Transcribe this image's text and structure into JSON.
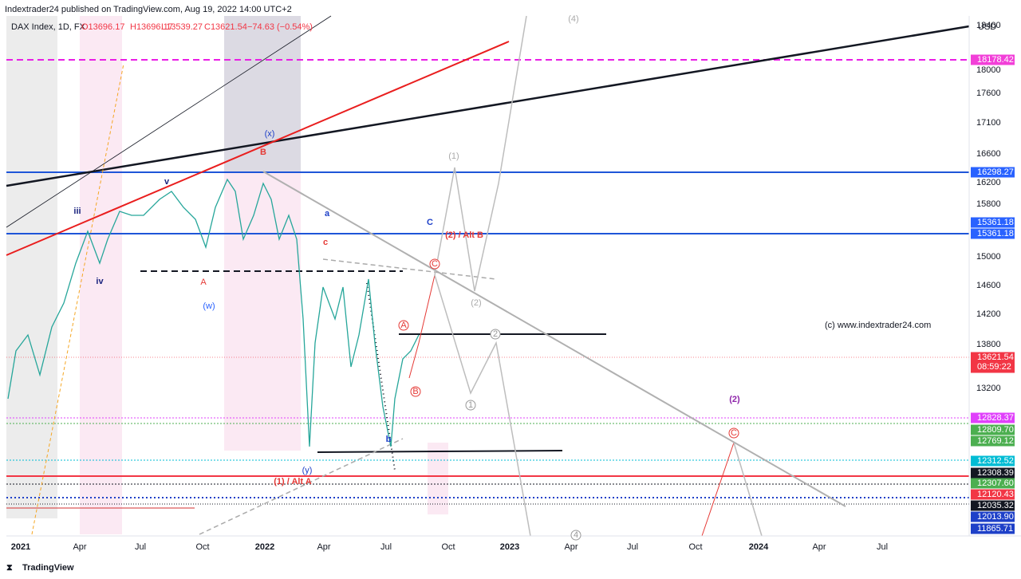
{
  "header": {
    "publisher": "Indextrader24 published on TradingView.com, Aug 19, 2022 14:00 UTC+2"
  },
  "symbol": {
    "name": "DAX Index, 1D, FX",
    "open": "O13696.17",
    "high": "H13696.17",
    "low": "L13539.27",
    "close": "C13621.54",
    "change": "−74.63 (−0.54%)"
  },
  "price_axis": {
    "currency": "USD",
    "labels": [
      "18400",
      "18000",
      "17600",
      "17100",
      "16600",
      "16200",
      "15800",
      "15000",
      "14600",
      "14200",
      "13800",
      "13200"
    ]
  },
  "price_badges": [
    "18178.42",
    "16298.27",
    "15361.18",
    "15361.18",
    "13621.54",
    "12828.37",
    "12809.70",
    "12769.12",
    "12312.52",
    "12308.39",
    "12307.60",
    "12120.43",
    "12035.32",
    "12013.90",
    "11865.71"
  ],
  "countdown": "08:59:22",
  "time_axis": [
    "2021",
    "Apr",
    "Jul",
    "Oct",
    "2022",
    "Apr",
    "Jul",
    "Oct",
    "2023",
    "Apr",
    "Jul",
    "Oct",
    "2024",
    "Apr",
    "Jul"
  ],
  "annotations": [
    "iii",
    "iv",
    "v",
    "(w)",
    "A",
    "B",
    "(x)",
    "a",
    "c",
    "C",
    "(2) / Alt B",
    "b",
    "(y)",
    "(1) / Alt A",
    "(2)",
    "A",
    "B",
    "C",
    "1",
    "2",
    "(1)",
    "(2)",
    "(4)",
    "4",
    "C"
  ],
  "watermark": "(c) www.indextrader24.com",
  "footer": "TradingView"
}
